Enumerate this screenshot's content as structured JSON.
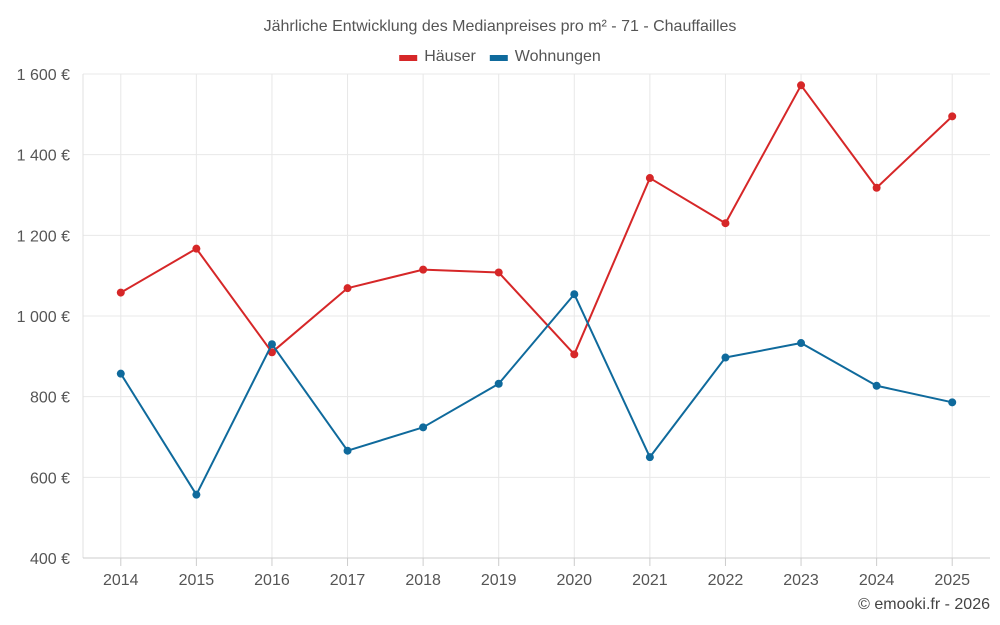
{
  "chart_data": {
    "type": "line",
    "title": "Jährliche Entwicklung des Medianpreises pro m² - 71 - Chauffailles",
    "categories": [
      "2014",
      "2015",
      "2016",
      "2017",
      "2018",
      "2019",
      "2020",
      "2021",
      "2022",
      "2023",
      "2024",
      "2025"
    ],
    "series": [
      {
        "name": "Häuser",
        "color": "#d62728",
        "values": [
          1058,
          1167,
          910,
          1069,
          1115,
          1108,
          905,
          1342,
          1230,
          1572,
          1318,
          1495
        ]
      },
      {
        "name": "Wohnungen",
        "color": "#0f6a9c",
        "values": [
          857,
          557,
          930,
          666,
          724,
          832,
          1054,
          650,
          897,
          933,
          827,
          786
        ]
      }
    ],
    "ylim": [
      400,
      1600
    ],
    "yticks": [
      400,
      600,
      800,
      1000,
      1200,
      1400,
      1600
    ],
    "ytick_labels": [
      "400 €",
      "600 €",
      "800 €",
      "1 000 €",
      "1 200 €",
      "1 400 €",
      "1 600 €"
    ],
    "xlabel": "",
    "ylabel": "",
    "grid": true,
    "legend_position": "top-center"
  },
  "credit": "© emooki.fr - 2026"
}
